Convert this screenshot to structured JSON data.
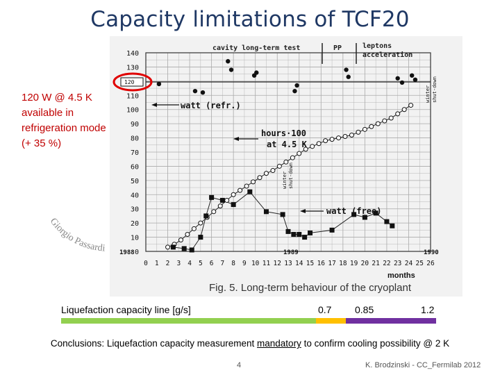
{
  "slide": {
    "title": "Capacity limitations of TCF20",
    "side_note": "120 W @ 4.5 K available in refrigeration mode ! (+ 35 %)",
    "author_overlay": "Giorgio Passardi",
    "page_number": "4",
    "footer": "K. Brodzinski - CC_Fermilab 2012"
  },
  "figure": {
    "header_cavity": "cavity long-term test",
    "header_pp": "PP",
    "header_leptons": "leptons",
    "header_accel": "acceleration",
    "label_watt_refr": "watt (refr.)",
    "label_hours_1": "hours·100",
    "label_hours_2": "at 4.5 K",
    "label_watt_free": "watt (free)",
    "label_winter_1": "winter",
    "label_shutdown_1": "shut-down",
    "label_winter_2": "winter",
    "label_shutdown_2": "shut-down",
    "year_1988": "1988",
    "year_1989": "1989",
    "year_1990": "1990",
    "months_label": "months",
    "caption": "Fig. 5. Long-term behaviour of the cryoplant",
    "highlight_value": "120",
    "y_ticks": [
      "0",
      "10",
      "20",
      "30",
      "40",
      "50",
      "60",
      "70",
      "80",
      "90",
      "100",
      "110",
      "120",
      "130",
      "140"
    ],
    "x_ticks": [
      "0",
      "1",
      "2",
      "3",
      "4",
      "5",
      "6",
      "7",
      "8",
      "9",
      "10",
      "11",
      "12",
      "13",
      "14",
      "15",
      "16",
      "17",
      "18",
      "19",
      "20",
      "21",
      "22",
      "23",
      "24",
      "25",
      "26"
    ]
  },
  "capacity_bar": {
    "label": "Liquefaction capacity line [g/s]",
    "value_1": "0.7",
    "value_2": "0.85",
    "value_3": "1.2",
    "segments": [
      {
        "name": "green",
        "color": "#92d050",
        "fraction": 0.68
      },
      {
        "name": "yellow",
        "color": "#ffc000",
        "fraction": 0.08
      },
      {
        "name": "purple",
        "color": "#7030a0",
        "fraction": 0.24
      }
    ]
  },
  "conclusion": {
    "prefix": "Conclusions: Liquefaction capacity measurement ",
    "emphasis": "mandatory",
    "suffix": " to confirm cooling possibility @ 2 K"
  },
  "chart_data": {
    "type": "scatter",
    "title": "Fig. 5. Long-term behaviour of the cryoplant",
    "xlabel": "months",
    "ylabel": "",
    "xlim": [
      0,
      26
    ],
    "ylim": [
      0,
      140
    ],
    "grid": true,
    "series": [
      {
        "name": "watt (refr.)",
        "marker": "filled-circle",
        "x": [
          1.2,
          4.5,
          5.2,
          7.5,
          7.8,
          9.9,
          10.1,
          13.6,
          13.8,
          18.3,
          18.5,
          23.0,
          23.4,
          24.3,
          24.6
        ],
        "y": [
          118,
          113,
          112,
          134,
          128,
          124,
          126,
          113,
          117,
          128,
          123,
          122,
          119,
          124,
          121
        ]
      },
      {
        "name": "hours·100 at 4.5 K",
        "marker": "open-circle",
        "x": [
          2.0,
          2.6,
          3.2,
          3.8,
          4.4,
          5.0,
          5.6,
          6.2,
          6.8,
          7.4,
          8.0,
          8.6,
          9.2,
          9.8,
          10.4,
          11.0,
          11.6,
          12.2,
          12.8,
          13.4,
          14.0,
          14.6,
          15.2,
          15.8,
          16.4,
          17.0,
          17.6,
          18.2,
          18.8,
          19.4,
          20.0,
          20.6,
          21.2,
          21.8,
          22.4,
          23.0,
          23.6,
          24.2
        ],
        "y": [
          3,
          5,
          8,
          12,
          16,
          20,
          24,
          28,
          32,
          36,
          40,
          43,
          46,
          49,
          52,
          55,
          57,
          60,
          63,
          66,
          69,
          72,
          74,
          76,
          78,
          79,
          80,
          81,
          82,
          84,
          86,
          88,
          90,
          92,
          94,
          97,
          100,
          103
        ]
      },
      {
        "name": "watt (free)",
        "marker": "filled-square",
        "x": [
          2.5,
          3.5,
          4.2,
          5.0,
          5.5,
          6.0,
          7.0,
          8.0,
          9.5,
          11.0,
          12.5,
          13.0,
          13.5,
          14.0,
          14.5,
          15.0,
          17.0,
          19.0,
          20.0,
          21.0,
          22.0,
          22.5
        ],
        "y": [
          3,
          2,
          1,
          10,
          25,
          38,
          36,
          33,
          42,
          28,
          26,
          14,
          12,
          12,
          10,
          13,
          15,
          26,
          24,
          27,
          21,
          18
        ]
      }
    ]
  }
}
